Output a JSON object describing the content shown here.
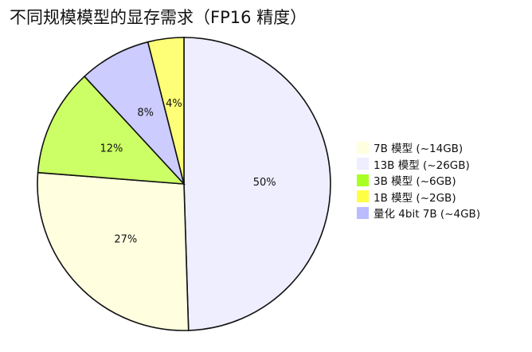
{
  "chart_data": {
    "type": "pie",
    "title": "不同规模模型的显存需求（FP16 精度）",
    "slices": [
      {
        "label": "13B 模型 (~26GB)",
        "value": 50,
        "value_label": "50%",
        "color": "#eeeeff"
      },
      {
        "label": "7B 模型 (~14GB)",
        "value": 27,
        "value_label": "27%",
        "color": "#ffffe0"
      },
      {
        "label": "3B 模型 (~6GB)",
        "value": 12,
        "value_label": "12%",
        "color": "#ccff66"
      },
      {
        "label": "量化 4bit 7B (~4GB)",
        "value": 8,
        "value_label": "8%",
        "color": "#ccccff"
      },
      {
        "label": "1B 模型 (~2GB)",
        "value": 4,
        "value_label": "4%",
        "color": "#ffff77"
      }
    ],
    "legend": {
      "placement": "right",
      "items": [
        {
          "label": "7B 模型 (~14GB)",
          "color": "#ffffe0"
        },
        {
          "label": "13B 模型 (~26GB)",
          "color": "#eeeeff"
        },
        {
          "label": "3B 模型 (~6GB)",
          "color": "#aaff22"
        },
        {
          "label": "1B 模型 (~2GB)",
          "color": "#ffff44"
        },
        {
          "label": "量化 4bit 7B (~4GB)",
          "color": "#bbbbff"
        }
      ]
    }
  }
}
